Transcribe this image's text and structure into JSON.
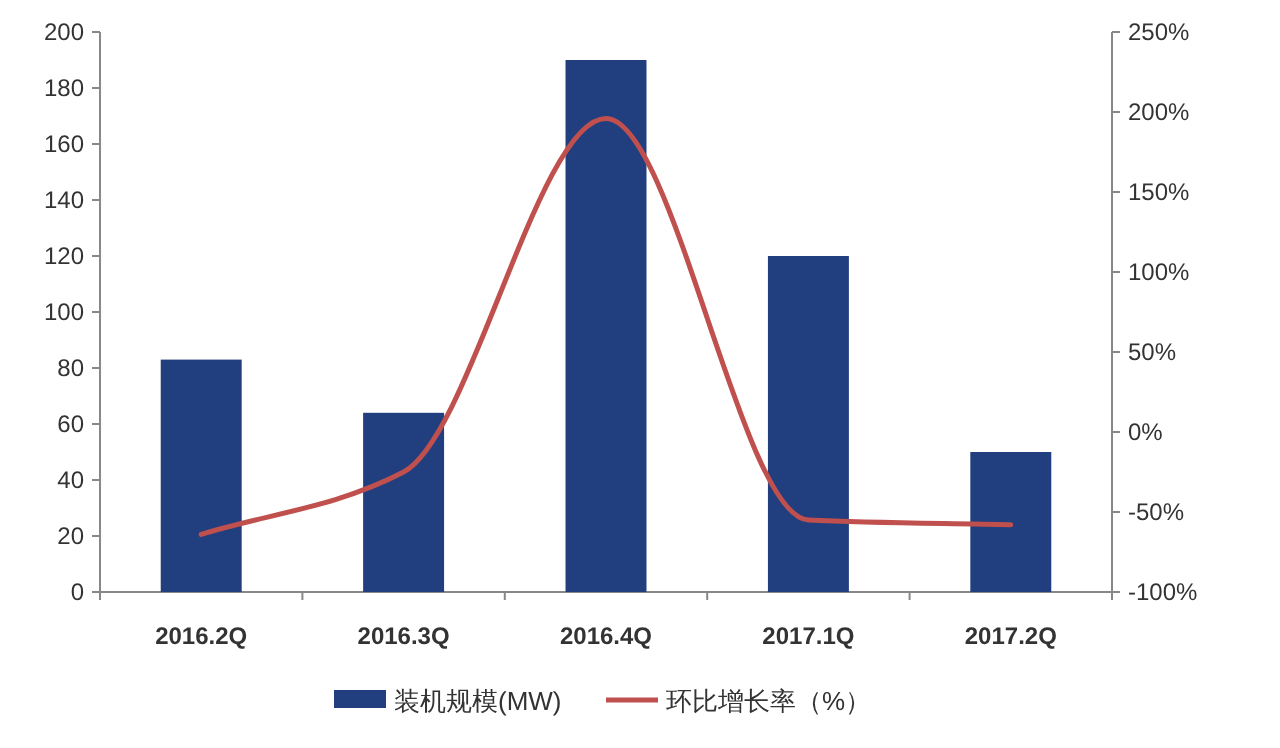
{
  "chart_data": {
    "type": "bar",
    "categories": [
      "2016.2Q",
      "2016.3Q",
      "2016.4Q",
      "2017.1Q",
      "2017.2Q"
    ],
    "series": [
      {
        "name": "装机规模(MW)",
        "color": "#213e7e",
        "values": [
          83,
          64,
          190,
          120,
          50
        ]
      },
      {
        "name": "环比增长率（%）",
        "type": "line",
        "axis": "y2",
        "color": "#c0504d",
        "values": [
          -64,
          -25,
          196,
          -55,
          -58
        ]
      }
    ],
    "ylim": [
      0,
      200
    ],
    "yticks": [
      0,
      20,
      40,
      60,
      80,
      100,
      120,
      140,
      160,
      180,
      200
    ],
    "y2lim": [
      -100,
      250
    ],
    "y2ticks": [
      {
        "value": -100,
        "label": "-100%"
      },
      {
        "value": -50,
        "label": "-50%"
      },
      {
        "value": 0,
        "label": "0%"
      },
      {
        "value": 50,
        "label": "50%"
      },
      {
        "value": 100,
        "label": "100%"
      },
      {
        "value": 150,
        "label": "150%"
      },
      {
        "value": 200,
        "label": "200%"
      },
      {
        "value": 250,
        "label": "250%"
      }
    ],
    "legend": "bottom"
  }
}
